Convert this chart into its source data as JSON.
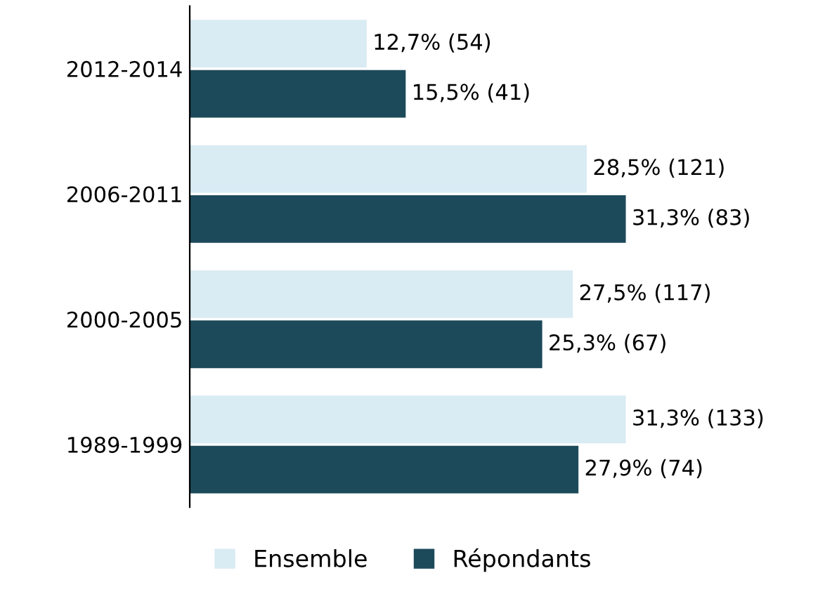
{
  "chart_data": {
    "type": "bar",
    "orientation": "horizontal",
    "categories": [
      "2012-2014",
      "2006-2011",
      "2000-2005",
      "1989-1999"
    ],
    "series": [
      {
        "name": "Ensemble",
        "color": "#d9ebf3",
        "values": [
          12.7,
          28.5,
          27.5,
          31.3
        ],
        "value_labels": [
          "12,7% (54)",
          "28,5% (121)",
          "27,5% (117)",
          "31,3% (133)"
        ]
      },
      {
        "name": "Répondants",
        "color": "#1d4a5a",
        "values": [
          15.5,
          31.3,
          25.3,
          27.9
        ],
        "value_labels": [
          "15,5% (41)",
          "31,3% (83)",
          "25,3% (67)",
          "27,9% (74)"
        ]
      }
    ],
    "legend": "bottom",
    "grid": false
  }
}
